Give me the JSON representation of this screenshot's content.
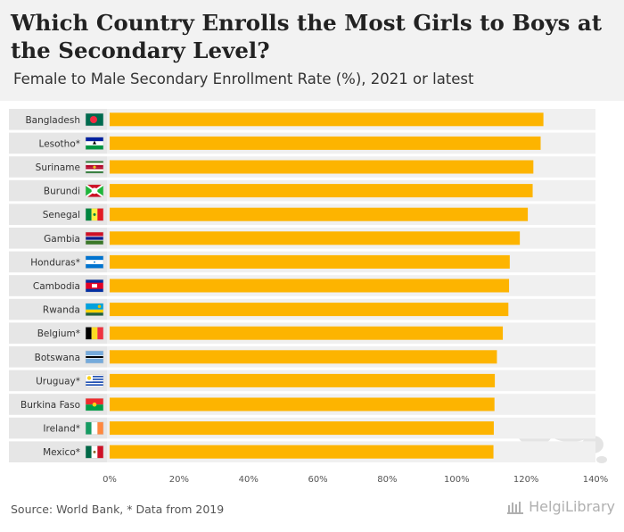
{
  "title": "Which Country Enrolls the Most Girls to Boys at the Secondary Level?",
  "subtitle": "Female to Male Secondary Enrollment Rate (%), 2021 or latest",
  "source": "Source: World Bank, * Data from 2019",
  "brand": "HelgiLibrary",
  "colors": {
    "bar": "#fdb400",
    "row_band": "#f0f0f0",
    "label_band": "#e6e6e6",
    "text": "#333333"
  },
  "chart_data": {
    "type": "bar",
    "orientation": "horizontal",
    "categories": [
      "Bangladesh",
      "Lesotho*",
      "Suriname",
      "Burundi",
      "Senegal",
      "Gambia",
      "Honduras*",
      "Cambodia",
      "Rwanda",
      "Belgium*",
      "Botswana",
      "Uruguay*",
      "Burkina Faso",
      "Ireland*",
      "Mexico*"
    ],
    "values": [
      125,
      124.2,
      122.1,
      121.9,
      120.5,
      118.2,
      115.3,
      115.1,
      114.9,
      113.3,
      111.6,
      111,
      110.9,
      110.7,
      110.6
    ],
    "flags": [
      "flag-bangladesh",
      "flag-lesotho",
      "flag-suriname",
      "flag-burundi",
      "flag-senegal",
      "flag-gambia",
      "flag-honduras",
      "flag-cambodia",
      "flag-rwanda",
      "flag-belgium",
      "flag-botswana",
      "flag-uruguay",
      "flag-burkina-faso",
      "flag-ireland",
      "flag-mexico"
    ],
    "xlim": [
      0,
      140
    ],
    "xticks": [
      "0%",
      "20%",
      "40%",
      "60%",
      "80%",
      "100%",
      "120%",
      "140%"
    ],
    "xtick_values": [
      0,
      20,
      40,
      60,
      80,
      100,
      120,
      140
    ],
    "grid": false,
    "legend": "none"
  }
}
